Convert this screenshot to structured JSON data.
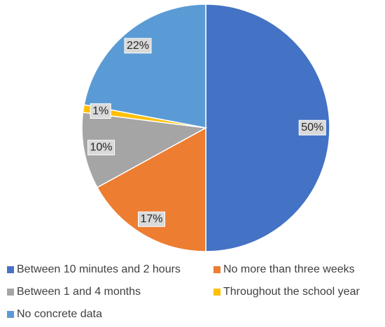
{
  "chart_data": {
    "type": "pie",
    "categories": [
      "Between 10 minutes and 2 hours",
      "No more than three weeks",
      "Between 1 and 4 months",
      "Throughout the school year",
      "No concrete data"
    ],
    "values": [
      50,
      17,
      10,
      1,
      22
    ],
    "value_labels": [
      "50%",
      "17%",
      "10%",
      "1%",
      "22%"
    ],
    "colors": [
      "#4472c4",
      "#ed7d31",
      "#a5a5a5",
      "#ffc000",
      "#5b9bd5"
    ],
    "legend": "bottom"
  }
}
